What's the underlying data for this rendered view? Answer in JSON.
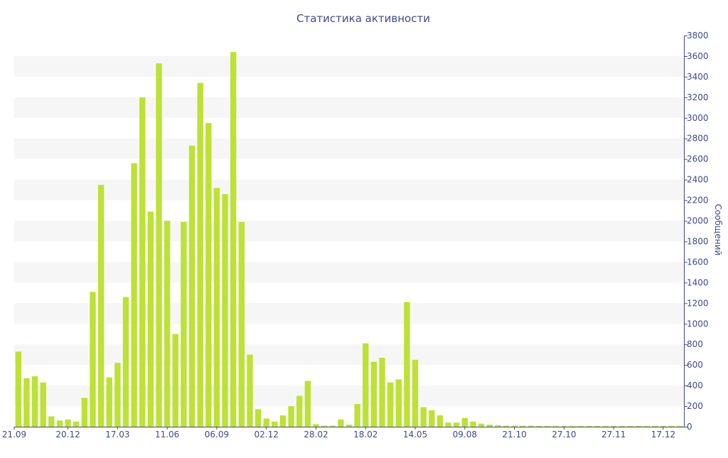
{
  "chart_data": {
    "type": "bar",
    "title": "Статистика активности",
    "ylabel": "Сообщений",
    "xlabel": "",
    "ylim": [
      0,
      3800
    ],
    "y_ticks": [
      0,
      200,
      400,
      600,
      800,
      1000,
      1200,
      1400,
      1600,
      1800,
      2000,
      2200,
      2400,
      2600,
      2800,
      3000,
      3200,
      3400,
      3600,
      3800
    ],
    "y_axis_position": "right",
    "grid": "alternating horizontal bands",
    "legend": "none",
    "x_tick_labels": [
      {
        "label": "21.09",
        "index": 0
      },
      {
        "label": "20.12",
        "index": 6
      },
      {
        "label": "17.03",
        "index": 12
      },
      {
        "label": "11.06",
        "index": 18
      },
      {
        "label": "06.09",
        "index": 24
      },
      {
        "label": "02.12",
        "index": 30
      },
      {
        "label": "28.02",
        "index": 36
      },
      {
        "label": "18.02",
        "index": 42
      },
      {
        "label": "14.05",
        "index": 48
      },
      {
        "label": "09.08",
        "index": 54
      },
      {
        "label": "21.10",
        "index": 60
      },
      {
        "label": "27.10",
        "index": 66
      },
      {
        "label": "27.11",
        "index": 72
      },
      {
        "label": "17.12",
        "index": 78
      }
    ],
    "values": [
      730,
      470,
      490,
      430,
      100,
      60,
      70,
      50,
      280,
      1310,
      2350,
      480,
      620,
      1260,
      2560,
      3200,
      2090,
      3530,
      2000,
      900,
      1990,
      2730,
      3340,
      2950,
      2320,
      2260,
      3640,
      1990,
      700,
      170,
      80,
      50,
      110,
      200,
      300,
      445,
      25,
      10,
      10,
      70,
      20,
      220,
      810,
      630,
      670,
      430,
      460,
      1210,
      650,
      190,
      160,
      110,
      40,
      40,
      85,
      50,
      30,
      20,
      15,
      10,
      10,
      10,
      10,
      8,
      8,
      8,
      8,
      8,
      8,
      8,
      8,
      8,
      8,
      8,
      8,
      8,
      8,
      8,
      8,
      8,
      8
    ],
    "colors": {
      "bar": "#bde134",
      "text": "#3d4a8a",
      "band": "#f6f6f6",
      "axis": "#3d4a8a"
    }
  }
}
